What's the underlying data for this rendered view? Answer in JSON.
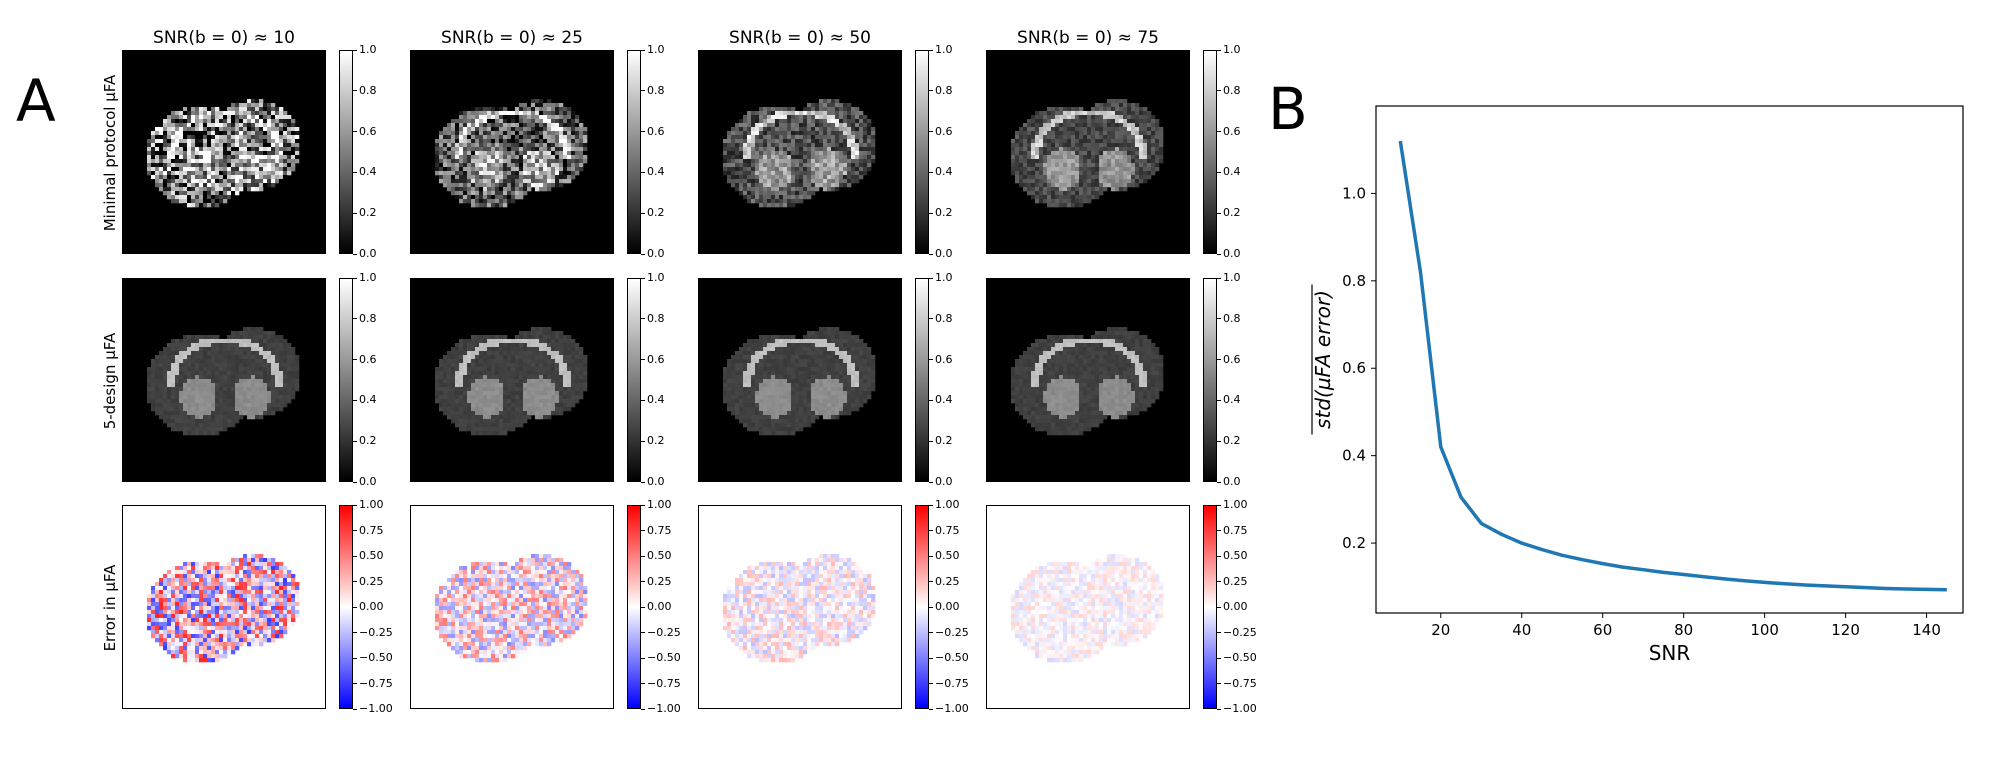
{
  "panel_a": {
    "letter": "A",
    "columns": [
      "SNR(b = 0) ≈ 10",
      "SNR(b = 0) ≈ 25",
      "SNR(b = 0) ≈ 50",
      "SNR(b = 0) ≈ 75"
    ],
    "rows": [
      {
        "label": "Minimal protocol µFA",
        "colormap": "gray",
        "ticks": [
          "1.0",
          "0.8",
          "0.6",
          "0.4",
          "0.2",
          "0.0"
        ]
      },
      {
        "label": "5-design µFA",
        "colormap": "gray",
        "ticks": [
          "1.0",
          "0.8",
          "0.6",
          "0.4",
          "0.2",
          "0.0"
        ]
      },
      {
        "label": "Error in µFA",
        "colormap": "bwr",
        "ticks": [
          "1.00",
          "0.75",
          "0.50",
          "0.25",
          "0.00",
          "−0.25",
          "−0.50",
          "−0.75",
          "−1.00"
        ]
      }
    ]
  },
  "panel_b": {
    "letter": "B"
  },
  "chart_data": {
    "type": "line",
    "xlabel": "SNR",
    "ylabel": "std(µFA error)",
    "xlim": [
      4,
      149
    ],
    "ylim": [
      0.04,
      1.2
    ],
    "xticks": [
      20,
      40,
      60,
      80,
      100,
      120,
      140
    ],
    "yticks": [
      0.2,
      0.4,
      0.6,
      0.8,
      1.0
    ],
    "grid": false,
    "color": "#1f77b4",
    "series": [
      {
        "x": [
          10,
          15,
          20,
          25,
          30,
          35,
          40,
          45,
          50,
          55,
          60,
          65,
          70,
          75,
          80,
          85,
          90,
          95,
          100,
          105,
          110,
          115,
          120,
          125,
          130,
          135,
          140,
          145
        ],
        "y": [
          1.12,
          0.82,
          0.42,
          0.305,
          0.245,
          0.22,
          0.2,
          0.185,
          0.172,
          0.162,
          0.153,
          0.145,
          0.139,
          0.133,
          0.128,
          0.123,
          0.118,
          0.114,
          0.11,
          0.107,
          0.104,
          0.102,
          0.1,
          0.098,
          0.096,
          0.095,
          0.094,
          0.093
        ]
      }
    ]
  }
}
